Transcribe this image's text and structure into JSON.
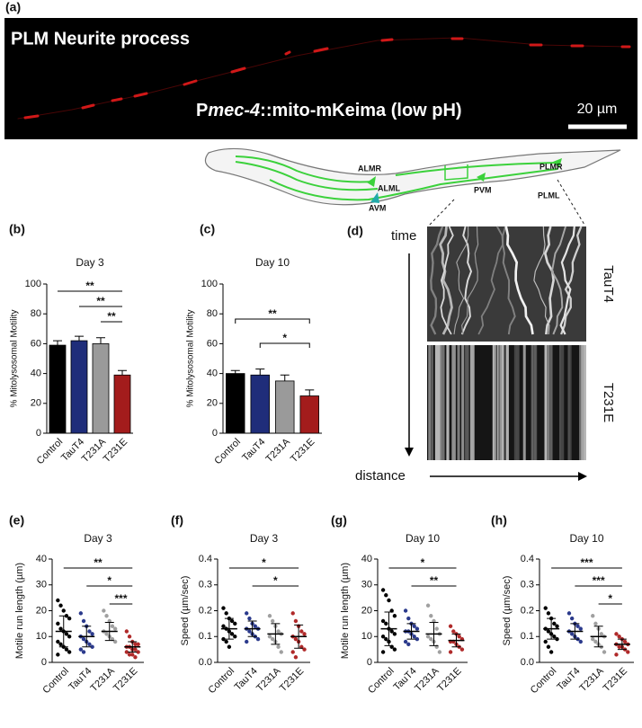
{
  "panel_a": {
    "panel": "(a)",
    "title": "PLM Neurite process",
    "label_parts": [
      "P",
      "mec-4",
      "::mito-mKeima (low pH)"
    ],
    "scale": "20 µm"
  },
  "diagram": {
    "neurons": [
      "ALMR",
      "ALML",
      "AVM",
      "PVM",
      "PLMR",
      "PLML"
    ]
  },
  "kymograph": {
    "panel": "(d)",
    "y_label": "time",
    "x_label": "distance",
    "rows": [
      "TauT4",
      "T231E"
    ]
  },
  "chart_data": [
    {
      "type": "bar",
      "panel": "(b)",
      "title": "Day 3",
      "y_label": "% Mitolysosomal Motility",
      "categories": [
        "Control",
        "TauT4",
        "T231A",
        "T231E"
      ],
      "values": [
        59,
        62,
        60,
        39
      ],
      "errors": [
        3,
        3,
        4,
        3
      ],
      "colors": [
        "#000000",
        "#1f2d7a",
        "#9a9a9a",
        "#a31c1c"
      ],
      "ylim": [
        0,
        100
      ],
      "yticks": [
        0,
        20,
        40,
        60,
        80,
        100
      ],
      "annotations": [
        {
          "from": "Control",
          "to": "T231E",
          "label": "**"
        },
        {
          "from": "TauT4",
          "to": "T231E",
          "label": "**"
        },
        {
          "from": "T231A",
          "to": "T231E",
          "label": "**"
        }
      ]
    },
    {
      "type": "bar",
      "panel": "(c)",
      "title": "Day 10",
      "y_label": "% Mitolysosomal Motility",
      "categories": [
        "Control",
        "TauT4",
        "T231A",
        "T231E"
      ],
      "values": [
        40,
        39,
        35,
        25
      ],
      "errors": [
        2,
        4,
        4,
        4
      ],
      "colors": [
        "#000000",
        "#1f2d7a",
        "#9a9a9a",
        "#a31c1c"
      ],
      "ylim": [
        0,
        100
      ],
      "yticks": [
        0,
        20,
        40,
        60,
        80,
        100
      ],
      "bracket": true,
      "annotations": [
        {
          "from": "Control",
          "to": "T231E",
          "label": "**"
        },
        {
          "from": "TauT4",
          "to": "T231E",
          "label": "*"
        }
      ]
    },
    {
      "type": "scatter",
      "panel": "(e)",
      "title": "Day 3",
      "y_label": "Motile run length (µm)",
      "ylim": [
        0,
        40
      ],
      "yticks": [
        0,
        10,
        20,
        30,
        40
      ],
      "series": [
        {
          "name": "Control",
          "color": "#000000",
          "values": [
            24,
            22,
            20,
            18,
            17,
            15,
            13,
            12,
            11,
            10,
            8,
            7,
            6,
            5,
            4,
            3
          ],
          "mean": 12,
          "sd": 6
        },
        {
          "name": "TauT4",
          "color": "#2b3a8c",
          "values": [
            19,
            16,
            14,
            12,
            11,
            10,
            9,
            8,
            7,
            6,
            5,
            4
          ],
          "mean": 10,
          "sd": 4
        },
        {
          "name": "T231A",
          "color": "#a0a0a0",
          "values": [
            20,
            18,
            16,
            14,
            13,
            12,
            11,
            10,
            9,
            8
          ],
          "mean": 12,
          "sd": 3.5
        },
        {
          "name": "T231E",
          "color": "#b02a2a",
          "values": [
            12,
            10,
            8,
            7,
            7,
            6,
            6,
            5,
            5,
            4,
            4,
            3,
            3,
            2
          ],
          "mean": 6,
          "sd": 2
        }
      ],
      "annotations": [
        {
          "from": "Control",
          "to": "T231E",
          "label": "**"
        },
        {
          "from": "TauT4",
          "to": "T231E",
          "label": "*"
        },
        {
          "from": "T231A",
          "to": "T231E",
          "label": "***"
        }
      ]
    },
    {
      "type": "scatter",
      "panel": "(f)",
      "title": "Day 3",
      "y_label": "Speed (µm/sec)",
      "ylim": [
        0,
        0.4
      ],
      "yticks": [
        {
          "value": 0,
          "label": "0.0"
        },
        0.1,
        0.2,
        0.3,
        0.4
      ],
      "series": [
        {
          "name": "Control",
          "color": "#000000",
          "values": [
            0.21,
            0.19,
            0.17,
            0.16,
            0.15,
            0.14,
            0.13,
            0.12,
            0.11,
            0.1,
            0.09,
            0.08,
            0.06
          ],
          "mean": 0.13,
          "sd": 0.04
        },
        {
          "name": "TauT4",
          "color": "#2b3a8c",
          "values": [
            0.19,
            0.17,
            0.15,
            0.14,
            0.13,
            0.13,
            0.12,
            0.11,
            0.1,
            0.09,
            0.08
          ],
          "mean": 0.13,
          "sd": 0.03
        },
        {
          "name": "T231A",
          "color": "#a0a0a0",
          "values": [
            0.18,
            0.16,
            0.14,
            0.12,
            0.11,
            0.1,
            0.09,
            0.08,
            0.06,
            0.04
          ],
          "mean": 0.11,
          "sd": 0.04
        },
        {
          "name": "T231E",
          "color": "#b02a2a",
          "values": [
            0.19,
            0.16,
            0.14,
            0.12,
            0.11,
            0.1,
            0.09,
            0.08,
            0.06,
            0.05,
            0.04,
            0.02
          ],
          "mean": 0.1,
          "sd": 0.045
        }
      ],
      "annotations": [
        {
          "from": "Control",
          "to": "T231E",
          "label": "*"
        },
        {
          "from": "TauT4",
          "to": "T231E",
          "label": "*"
        }
      ]
    },
    {
      "type": "scatter",
      "panel": "(g)",
      "title": "Day 10",
      "y_label": "Motile run length (µm)",
      "ylim": [
        0,
        40
      ],
      "yticks": [
        0,
        10,
        20,
        30,
        40
      ],
      "series": [
        {
          "name": "Control",
          "color": "#000000",
          "values": [
            28,
            26,
            24,
            20,
            18,
            16,
            15,
            13,
            12,
            11,
            10,
            9,
            8,
            6,
            5,
            4
          ],
          "mean": 13,
          "sd": 6.5
        },
        {
          "name": "TauT4",
          "color": "#2b3a8c",
          "values": [
            20,
            17,
            15,
            14,
            13,
            12,
            12,
            11,
            10,
            9,
            8,
            7
          ],
          "mean": 12,
          "sd": 3
        },
        {
          "name": "T231A",
          "color": "#a0a0a0",
          "values": [
            22,
            18,
            16,
            13,
            11,
            10,
            9,
            8,
            6,
            4
          ],
          "mean": 11,
          "sd": 4.5
        },
        {
          "name": "T231E",
          "color": "#b02a2a",
          "values": [
            14,
            12,
            11,
            10,
            9,
            8,
            8,
            7,
            6,
            5,
            4
          ],
          "mean": 8.5,
          "sd": 2.5
        }
      ],
      "annotations": [
        {
          "from": "Control",
          "to": "T231E",
          "label": "*"
        },
        {
          "from": "TauT4",
          "to": "T231E",
          "label": "**"
        }
      ]
    },
    {
      "type": "scatter",
      "panel": "(h)",
      "title": "Day 10",
      "y_label": "Speed (µm/sec)",
      "ylim": [
        0,
        0.4
      ],
      "yticks": [
        {
          "value": 0,
          "label": "0.0"
        },
        0.1,
        0.2,
        0.3,
        0.4
      ],
      "series": [
        {
          "name": "Control",
          "color": "#000000",
          "values": [
            0.21,
            0.19,
            0.17,
            0.15,
            0.14,
            0.13,
            0.12,
            0.11,
            0.1,
            0.09,
            0.08,
            0.06,
            0.04
          ],
          "mean": 0.13,
          "sd": 0.04
        },
        {
          "name": "TauT4",
          "color": "#2b3a8c",
          "values": [
            0.19,
            0.17,
            0.15,
            0.14,
            0.13,
            0.12,
            0.11,
            0.1,
            0.09,
            0.08
          ],
          "mean": 0.12,
          "sd": 0.03
        },
        {
          "name": "T231A",
          "color": "#a0a0a0",
          "values": [
            0.18,
            0.15,
            0.13,
            0.11,
            0.1,
            0.09,
            0.08,
            0.07,
            0.06,
            0.04
          ],
          "mean": 0.1,
          "sd": 0.04
        },
        {
          "name": "T231E",
          "color": "#b02a2a",
          "values": [
            0.11,
            0.1,
            0.09,
            0.08,
            0.07,
            0.07,
            0.06,
            0.06,
            0.05,
            0.04,
            0.03
          ],
          "mean": 0.07,
          "sd": 0.02
        }
      ],
      "annotations": [
        {
          "from": "Control",
          "to": "T231E",
          "label": "***"
        },
        {
          "from": "TauT4",
          "to": "T231E",
          "label": "***"
        },
        {
          "from": "T231A",
          "to": "T231E",
          "label": "*"
        }
      ]
    }
  ]
}
